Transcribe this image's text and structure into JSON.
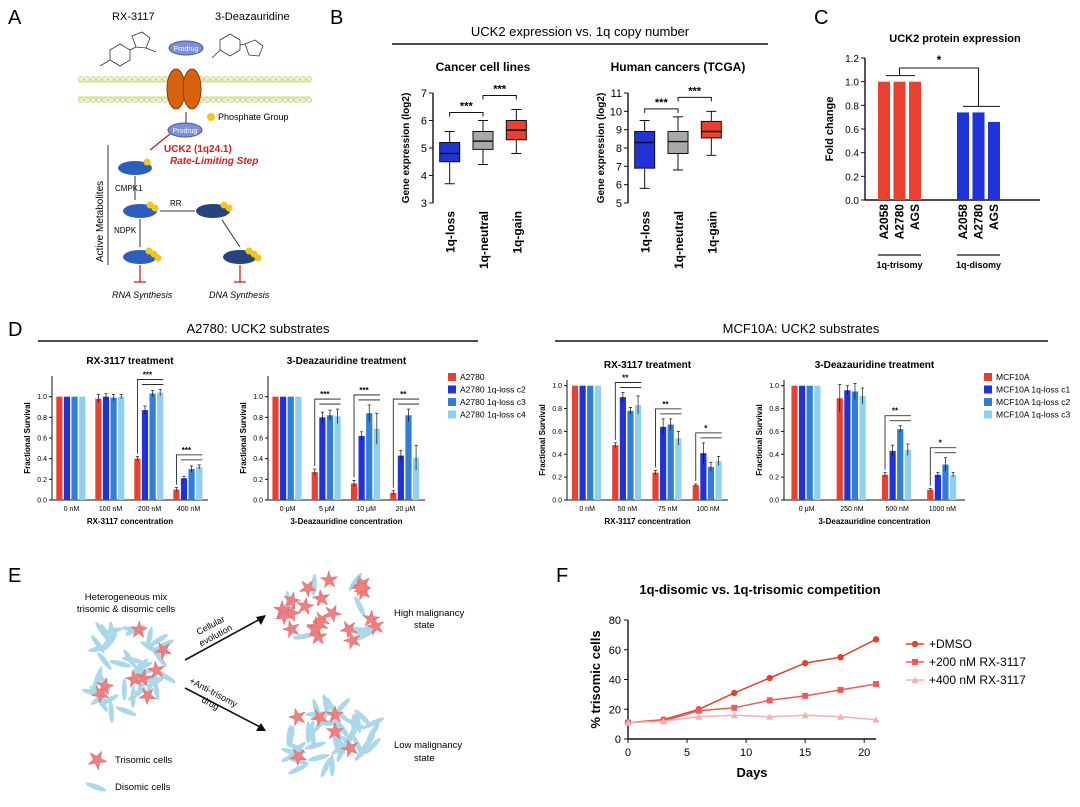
{
  "panels": {
    "A": {
      "label": "A",
      "drug1": "RX-3117",
      "drug2": "3-Deazauridine",
      "prodrug_top": "Prodrug",
      "prodrug_bottom": "Prodrug",
      "phosphate_legend": "Phosphate Group",
      "uck2_line1": "UCK2 (1q24.1)",
      "uck2_line2": "Rate-Limiting Step",
      "cmpk1": "CMPK1",
      "rr": "RR",
      "ndpk": "NDPK",
      "side_label": "Active Metabolites",
      "rna": "RNA Synthesis",
      "dna": "DNA Synthesis"
    },
    "B": {
      "label": "B",
      "title": "UCK2 expression vs. 1q copy number"
    },
    "C": {
      "label": "C"
    },
    "D": {
      "label": "D",
      "left_title": "A2780: UCK2 substrates",
      "right_title": "MCF10A: UCK2 substrates"
    },
    "E": {
      "label": "E",
      "mix_line1": "Heterogeneous mix",
      "mix_line2": "trisomic & disomic cells",
      "arrow1_line1": "Cellular",
      "arrow1_line2": "evolution",
      "arrow2_line1": "+Anti-trisomy",
      "arrow2_line2": "drug",
      "high_line1": "High malignancy",
      "high_line2": "state",
      "low_line1": "Low malignancy",
      "low_line2": "state",
      "legend_tri": "Trisomic cells",
      "legend_di": "Disomic cells"
    },
    "F": {
      "label": "F"
    }
  },
  "colors": {
    "red": "#e8412f",
    "gray": "#a9a9a9",
    "blue": "#1f33d8",
    "mid_blue": "#2f7fd6",
    "light_blue": "#8fd0ef",
    "salmon": "#f08080",
    "pink": "#f7b6b6",
    "cyan": "#a8d8ea"
  },
  "chart_data": [
    {
      "id": "B1",
      "type": "box",
      "title": "Cancer cell lines",
      "ylabel": "Gene expression (log2)",
      "ylim": [
        3,
        7
      ],
      "yticks": [
        3,
        4,
        5,
        6,
        7
      ],
      "categories": [
        "1q-loss",
        "1q-neutral",
        "1q-gain"
      ],
      "boxes": [
        {
          "min": 3.7,
          "q1": 4.5,
          "median": 4.8,
          "q3": 5.2,
          "max": 5.6
        },
        {
          "min": 4.4,
          "q1": 4.95,
          "median": 5.25,
          "q3": 5.6,
          "max": 6.0
        },
        {
          "min": 4.8,
          "q1": 5.3,
          "median": 5.65,
          "q3": 6.0,
          "max": 6.4
        }
      ],
      "significance": [
        "***",
        "***"
      ]
    },
    {
      "id": "B2",
      "type": "box",
      "title": "Human cancers (TCGA)",
      "ylabel": "Gene expression (log2)",
      "ylim": [
        5,
        11
      ],
      "yticks": [
        5,
        6,
        7,
        8,
        9,
        10,
        11
      ],
      "categories": [
        "1q-loss",
        "1q-neutral",
        "1q-gain"
      ],
      "boxes": [
        {
          "min": 5.8,
          "q1": 6.9,
          "median": 8.3,
          "q3": 8.9,
          "max": 9.5
        },
        {
          "min": 6.8,
          "q1": 7.7,
          "median": 8.35,
          "q3": 8.9,
          "max": 9.7
        },
        {
          "min": 7.6,
          "q1": 8.55,
          "median": 8.9,
          "q3": 9.45,
          "max": 10.0
        }
      ],
      "significance": [
        "***",
        "***"
      ]
    },
    {
      "id": "C",
      "type": "bar",
      "title": "UCK2 protein expression",
      "ylabel": "Fold change",
      "ylim": [
        0,
        1.2
      ],
      "yticks": [
        "0.0",
        "0.2",
        "0.4",
        "0.6",
        "0.8",
        "1.0",
        "1.2"
      ],
      "groups": [
        {
          "name": "1q-trisomy",
          "categories": [
            "A2058",
            "A2780",
            "AGS"
          ],
          "values": [
            1.0,
            1.0,
            1.0
          ],
          "color": "red"
        },
        {
          "name": "1q-disomy",
          "categories": [
            "A2058",
            "A2780",
            "AGS"
          ],
          "values": [
            0.74,
            0.74,
            0.66
          ],
          "color": "blue"
        }
      ],
      "significance": "*"
    },
    {
      "id": "D1",
      "type": "bar",
      "title": "RX-3117 treatment",
      "ylabel": "Fractional Survival",
      "xlabel": "RX-3117 concentration",
      "ylim": [
        0,
        1.2
      ],
      "yticks": [
        "0.0",
        "0.2",
        "0.4",
        "0.6",
        "0.8",
        "1.0"
      ],
      "categories": [
        "0 nM",
        "100 nM",
        "200 nM",
        "400 nM"
      ],
      "series": [
        {
          "name": "A2780",
          "values": [
            1.0,
            0.98,
            0.4,
            0.1
          ],
          "errors": [
            0,
            0.04,
            0.02,
            0.02
          ]
        },
        {
          "name": "A2780 1q-loss c2",
          "values": [
            1.0,
            1.0,
            0.87,
            0.21
          ],
          "errors": [
            0,
            0.03,
            0.04,
            0.02
          ]
        },
        {
          "name": "A2780 1q-loss c3",
          "values": [
            1.0,
            0.99,
            1.03,
            0.3
          ],
          "errors": [
            0,
            0.03,
            0.03,
            0.03
          ]
        },
        {
          "name": "A2780 1q-loss c4",
          "values": [
            1.0,
            1.0,
            1.04,
            0.32
          ],
          "errors": [
            0,
            0.02,
            0.03,
            0.02
          ]
        }
      ],
      "significance": [
        {
          "group": 2,
          "text": "***"
        },
        {
          "group": 3,
          "text": "***"
        }
      ]
    },
    {
      "id": "D2",
      "type": "bar",
      "title": "3-Deazauridine treatment",
      "ylabel": "Fractional Survival",
      "xlabel": "3-Deazauridine concentration",
      "ylim": [
        0,
        1.2
      ],
      "yticks": [
        "0.0",
        "0.2",
        "0.4",
        "0.6",
        "0.8",
        "1.0"
      ],
      "categories": [
        "0 μM",
        "5 μM",
        "10 μM",
        "20 μM"
      ],
      "series": [
        {
          "name": "A2780",
          "values": [
            1.0,
            0.27,
            0.16,
            0.07
          ],
          "errors": [
            0,
            0.03,
            0.03,
            0.02
          ]
        },
        {
          "name": "A2780 1q-loss c2",
          "values": [
            1.0,
            0.8,
            0.62,
            0.43
          ],
          "errors": [
            0,
            0.05,
            0.04,
            0.05
          ]
        },
        {
          "name": "A2780 1q-loss c3",
          "values": [
            1.0,
            0.82,
            0.84,
            0.82
          ],
          "errors": [
            0,
            0.05,
            0.08,
            0.06
          ]
        },
        {
          "name": "A2780 1q-loss c4",
          "values": [
            1.0,
            0.81,
            0.69,
            0.41
          ],
          "errors": [
            0,
            0.07,
            0.15,
            0.12
          ]
        }
      ],
      "significance": [
        {
          "group": 1,
          "text": "***"
        },
        {
          "group": 2,
          "text": "***"
        },
        {
          "group": 3,
          "text": "**"
        }
      ]
    },
    {
      "id": "D3",
      "type": "bar",
      "title": "RX-3117 treatment",
      "ylabel": "Fractional Survival",
      "xlabel": "RX-3117 concentration",
      "ylim": [
        0,
        1.05
      ],
      "yticks": [
        "0.0",
        "0.2",
        "0.4",
        "0.6",
        "0.8",
        "1.0"
      ],
      "categories": [
        "0 nM",
        "50 nM",
        "75 nM",
        "100 nM"
      ],
      "series": [
        {
          "name": "MCF10A",
          "values": [
            1.0,
            0.48,
            0.24,
            0.13
          ],
          "errors": [
            0,
            0.02,
            0.02,
            0.01
          ]
        },
        {
          "name": "MCF10A 1q-loss c1",
          "values": [
            1.0,
            0.9,
            0.64,
            0.41
          ],
          "errors": [
            0,
            0.04,
            0.07,
            0.09
          ]
        },
        {
          "name": "MCF10A 1q-loss c2",
          "values": [
            1.0,
            0.78,
            0.66,
            0.29
          ],
          "errors": [
            0,
            0.03,
            0.05,
            0.04
          ]
        },
        {
          "name": "MCF10A 1q-loss c3",
          "values": [
            1.0,
            0.83,
            0.54,
            0.34
          ],
          "errors": [
            0,
            0.08,
            0.06,
            0.04
          ]
        }
      ],
      "significance": [
        {
          "group": 1,
          "text": "**"
        },
        {
          "group": 2,
          "text": "**"
        },
        {
          "group": 3,
          "text": "*"
        }
      ]
    },
    {
      "id": "D4",
      "type": "bar",
      "title": "3-Deazauridine treatment",
      "ylabel": "Fractional Survival",
      "xlabel": "3-Deazauridine concentration",
      "ylim": [
        0,
        1.05
      ],
      "yticks": [
        "0.0",
        "0.2",
        "0.4",
        "0.6",
        "0.8",
        "1.0"
      ],
      "categories": [
        "0 μM",
        "250 nM",
        "500 nM",
        "1000 nM"
      ],
      "series": [
        {
          "name": "MCF10A",
          "values": [
            1.0,
            0.89,
            0.22,
            0.09
          ],
          "errors": [
            0,
            0.12,
            0.02,
            0.01
          ]
        },
        {
          "name": "MCF10A 1q-loss c1",
          "values": [
            1.0,
            0.96,
            0.43,
            0.22
          ],
          "errors": [
            0,
            0.04,
            0.05,
            0.02
          ]
        },
        {
          "name": "MCF10A 1q-loss c2",
          "values": [
            1.0,
            0.95,
            0.62,
            0.31
          ],
          "errors": [
            0,
            0.07,
            0.03,
            0.06
          ]
        },
        {
          "name": "MCF10A 1q-loss c3",
          "values": [
            1.0,
            0.91,
            0.44,
            0.22
          ],
          "errors": [
            0,
            0.07,
            0.05,
            0.02
          ]
        }
      ],
      "significance": [
        {
          "group": 2,
          "text": "**"
        },
        {
          "group": 3,
          "text": "*"
        }
      ]
    },
    {
      "id": "F",
      "type": "line",
      "title": "1q-disomic vs. 1q-trisomic competition",
      "xlabel": "Days",
      "ylabel": "% trisomic cells",
      "xlim": [
        0,
        21
      ],
      "ylim": [
        0,
        80
      ],
      "xticks": [
        0,
        5,
        10,
        15,
        20
      ],
      "yticks": [
        0,
        20,
        40,
        60,
        80
      ],
      "x": [
        0,
        3,
        6,
        9,
        12,
        15,
        18,
        21
      ],
      "series": [
        {
          "name": "+DMSO",
          "values": [
            11,
            13,
            20,
            31,
            41,
            51,
            55,
            67
          ],
          "marker": "circle"
        },
        {
          "name": "+200 nM RX-3117",
          "values": [
            11,
            12,
            19,
            21,
            26,
            29,
            33,
            37
          ],
          "marker": "square"
        },
        {
          "name": "+400 nM RX-3117",
          "values": [
            11,
            12,
            15,
            16,
            15,
            16,
            15,
            13
          ],
          "marker": "triangle"
        }
      ]
    }
  ]
}
